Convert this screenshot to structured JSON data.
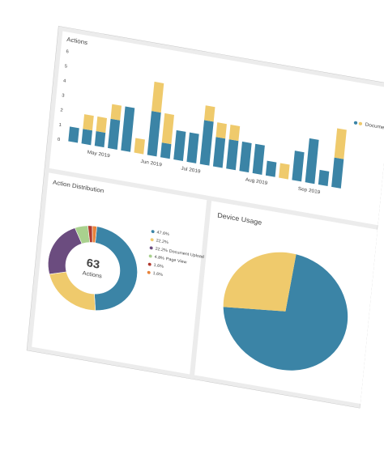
{
  "chart_data": [
    {
      "type": "bar",
      "title": "Actions",
      "categories": [
        null,
        null,
        "May 2019",
        null,
        null,
        null,
        "Jun 2019",
        null,
        null,
        "Jul 2019",
        null,
        null,
        null,
        null,
        "Aug 2019",
        null,
        null,
        null,
        "Sep 2019",
        null,
        null
      ],
      "series": [
        {
          "color": "#3b84a6",
          "values": [
            1,
            1,
            1,
            2,
            3,
            0,
            3,
            1,
            2,
            2,
            3,
            2,
            2,
            2,
            2,
            1,
            0,
            2,
            3,
            1,
            2
          ]
        },
        {
          "name": "Document Up",
          "color": "#efca6c",
          "values": [
            0,
            1,
            1,
            1,
            0,
            1,
            2,
            2,
            0,
            0,
            1,
            1,
            1,
            0,
            0,
            0,
            1,
            0,
            0,
            0,
            2
          ]
        }
      ],
      "ylim": [
        0,
        6
      ],
      "yticks": [
        0,
        1,
        2,
        3,
        4,
        5,
        6
      ],
      "stacked": true
    },
    {
      "type": "donut",
      "title": "Action Distribution",
      "center_value": "63",
      "center_label": "Actions",
      "categories": [
        null,
        null,
        "Document Upload",
        "Page View",
        null,
        null
      ],
      "values": [
        47.6,
        22.2,
        22.2,
        4.8,
        1.6,
        1.6
      ],
      "value_labels": [
        "47.6%",
        "22.2%",
        "22.2%",
        "4.8%",
        "1.6%",
        "1.6%"
      ],
      "colors": [
        "#3b84a6",
        "#efca6c",
        "#6b4c7f",
        "#a9d18e",
        "#b0392e",
        "#e8833a"
      ]
    },
    {
      "type": "pie",
      "title": "Device Usage",
      "values": [
        72,
        28
      ],
      "colors": [
        "#3b84a6",
        "#efca6c"
      ]
    }
  ]
}
